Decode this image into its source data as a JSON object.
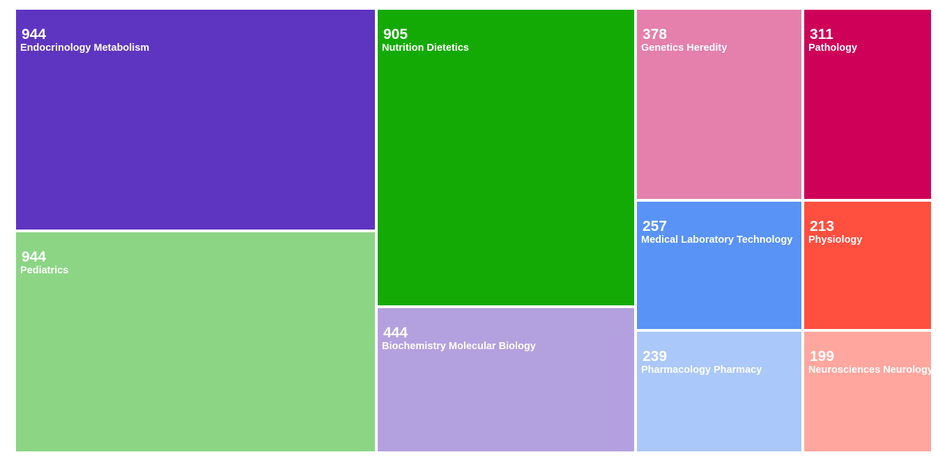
{
  "chart_data": {
    "type": "treemap",
    "items": [
      {
        "name": "Endocrinology Metabolism",
        "value": 944,
        "color": "#5e35c1"
      },
      {
        "name": "Pediatrics",
        "value": 944,
        "color": "#8bd584"
      },
      {
        "name": "Nutrition Dietetics",
        "value": 905,
        "color": "#14aa05"
      },
      {
        "name": "Biochemistry Molecular Biology",
        "value": 444,
        "color": "#b3a0df"
      },
      {
        "name": "Genetics Heredity",
        "value": 378,
        "color": "#e57fab"
      },
      {
        "name": "Pathology",
        "value": 311,
        "color": "#ce0058"
      },
      {
        "name": "Medical Laboratory Technology",
        "value": 257,
        "color": "#5893f5"
      },
      {
        "name": "Physiology",
        "value": 213,
        "color": "#ff4f3f"
      },
      {
        "name": "Pharmacology Pharmacy",
        "value": 239,
        "color": "#aac8f9"
      },
      {
        "name": "Neurosciences Neurology",
        "value": 199,
        "color": "#ffa69e"
      }
    ]
  }
}
